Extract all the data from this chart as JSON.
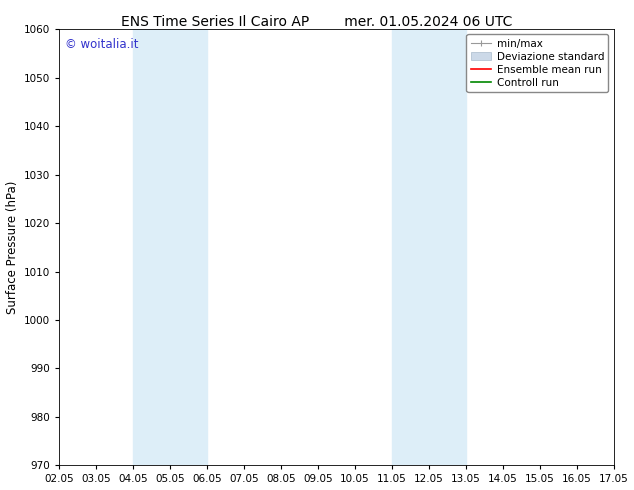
{
  "title_left": "ENS Time Series Il Cairo AP",
  "title_right": "mer. 01.05.2024 06 UTC",
  "ylabel": "Surface Pressure (hPa)",
  "xlabel": "",
  "ylim": [
    970,
    1060
  ],
  "yticks": [
    970,
    980,
    990,
    1000,
    1010,
    1020,
    1030,
    1040,
    1050,
    1060
  ],
  "xtick_labels": [
    "02.05",
    "03.05",
    "04.05",
    "05.05",
    "06.05",
    "07.05",
    "08.05",
    "09.05",
    "10.05",
    "11.05",
    "12.05",
    "13.05",
    "14.05",
    "15.05",
    "16.05",
    "17.05"
  ],
  "xtick_positions": [
    0,
    1,
    2,
    3,
    4,
    5,
    6,
    7,
    8,
    9,
    10,
    11,
    12,
    13,
    14,
    15
  ],
  "shaded_bands": [
    {
      "x_start": 2,
      "x_end": 3,
      "color": "#ddeef8"
    },
    {
      "x_start": 3,
      "x_end": 4,
      "color": "#ddeef8"
    },
    {
      "x_start": 9,
      "x_end": 10,
      "color": "#ddeef8"
    },
    {
      "x_start": 10,
      "x_end": 11,
      "color": "#ddeef8"
    }
  ],
  "watermark_text": "© woitalia.it",
  "watermark_color": "#3333cc",
  "background_color": "#ffffff",
  "grid_color": "#dddddd",
  "minmax_color": "#999999",
  "devstd_color": "#ccd9e8",
  "ensemble_color": "#ff0000",
  "control_color": "#008800",
  "title_fontsize": 10,
  "tick_fontsize": 7.5,
  "ylabel_fontsize": 8.5,
  "legend_fontsize": 7.5,
  "watermark_fontsize": 8.5
}
